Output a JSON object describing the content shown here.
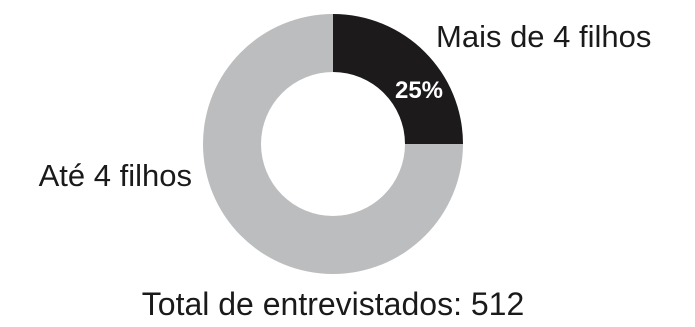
{
  "chart_data": {
    "type": "pie",
    "variant": "donut",
    "slices": [
      {
        "label": "Mais de 4 filhos",
        "value": 25,
        "value_label": "25%",
        "color": "#1c1a1b"
      },
      {
        "label": "Até 4 filhos",
        "value": 75,
        "value_label": "",
        "color": "#bcbdbf"
      }
    ],
    "caption": "Total de entrevistados: 512",
    "legend": "none"
  }
}
